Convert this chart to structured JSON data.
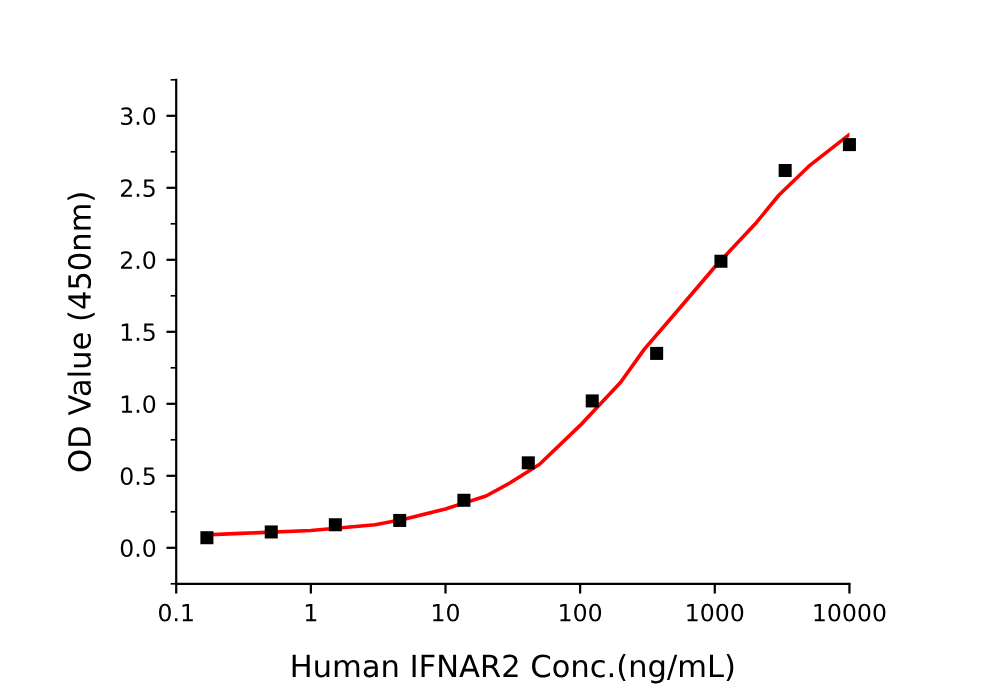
{
  "chart_data": {
    "type": "scatter",
    "xlabel": "Human IFNAR2 Conc.(ng/mL)",
    "ylabel": "OD Value (450nm)",
    "log": "x",
    "xlim": [
      0.1,
      10000
    ],
    "xticks": [
      {
        "value": 0.1,
        "label": "0.1"
      },
      1,
      10,
      100,
      1000,
      10000
    ],
    "ylim": [
      -0.25,
      3.25
    ],
    "yticks": [
      {
        "value": 0,
        "label": "0.0"
      },
      {
        "value": 0.5,
        "label": "0.5"
      },
      {
        "value": 1,
        "label": "1.0"
      },
      {
        "value": 1.5,
        "label": "1.5"
      },
      {
        "value": 2,
        "label": "2.0"
      },
      {
        "value": 2.5,
        "label": "2.5"
      },
      {
        "value": 3,
        "label": "3.0"
      }
    ],
    "grid": false,
    "series": [
      {
        "marker": "square",
        "color": "#000000",
        "x": [
          0.169,
          0.508,
          1.52,
          4.57,
          13.7,
          41.2,
          123,
          370,
          1111,
          3333,
          10000
        ],
        "values": [
          0.07,
          0.11,
          0.16,
          0.19,
          0.33,
          0.59,
          1.02,
          1.35,
          1.99,
          2.62,
          2.8
        ]
      },
      {
        "type": "line",
        "marker": "none",
        "color": "#ff0000",
        "line_style": "solid",
        "x": [
          0.169,
          0.3,
          1,
          3,
          5,
          10,
          20,
          30,
          50,
          100,
          200,
          300,
          500,
          1000,
          2000,
          3000,
          5000,
          10000
        ],
        "values": [
          0.09,
          0.1,
          0.12,
          0.16,
          0.2,
          0.27,
          0.36,
          0.45,
          0.58,
          0.85,
          1.15,
          1.38,
          1.62,
          1.95,
          2.25,
          2.45,
          2.65,
          2.87
        ]
      }
    ]
  }
}
